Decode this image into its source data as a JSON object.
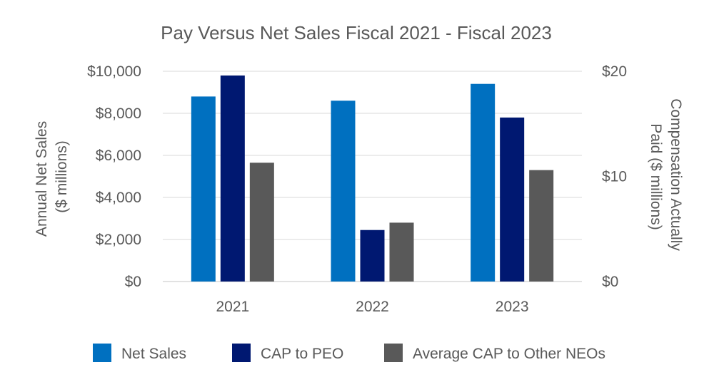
{
  "chart_data": {
    "type": "bar",
    "title": "Pay Versus Net Sales Fiscal 2021 - Fiscal 2023",
    "categories": [
      "2021",
      "2022",
      "2023"
    ],
    "series": [
      {
        "name": "Net Sales",
        "axis": "left",
        "color": "#0070C0",
        "values": [
          8800,
          8600,
          9400
        ]
      },
      {
        "name": "CAP to PEO",
        "axis": "right",
        "color": "#001871",
        "values": [
          19.6,
          4.9,
          15.6
        ]
      },
      {
        "name": "Average CAP to Other NEOs",
        "axis": "right",
        "color": "#595959",
        "values": [
          11.3,
          5.6,
          10.6
        ]
      }
    ],
    "y_left": {
      "label_line1": "Annual Net Sales",
      "label_line2": "($ millions)",
      "min": 0,
      "max": 10000,
      "ticks": [
        0,
        2000,
        4000,
        6000,
        8000,
        10000
      ],
      "tick_labels": [
        "$0",
        "$2,000",
        "$4,000",
        "$6,000",
        "$8,000",
        "$10,000"
      ]
    },
    "y_right": {
      "label_line1": "Compensation Actually",
      "label_line2": "Paid ($ millions)",
      "min": 0,
      "max": 20,
      "ticks": [
        0,
        10,
        20
      ],
      "tick_labels": [
        "$0",
        "$10",
        "$20"
      ]
    },
    "grid": true,
    "legend": "bottom"
  }
}
